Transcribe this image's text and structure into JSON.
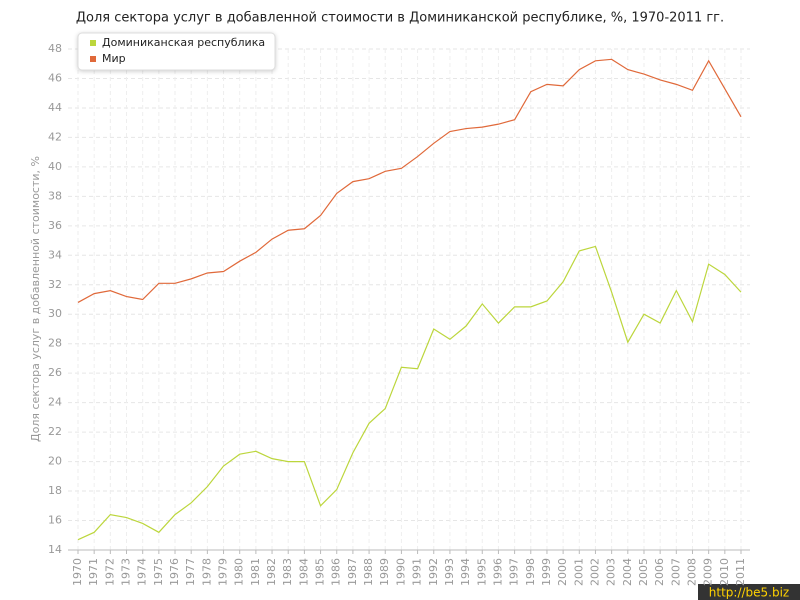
{
  "chart_data": {
    "type": "line",
    "title": "Доля сектора услуг в добавленной стоимости в Доминиканской республике, %, 1970-2011 гг.",
    "y_label": "Доля сектора услуг в добавленной стоимости, %",
    "categories": [
      "1970",
      "1971",
      "1972",
      "1973",
      "1974",
      "1975",
      "1976",
      "1977",
      "1978",
      "1979",
      "1980",
      "1981",
      "1982",
      "1983",
      "1984",
      "1985",
      "1986",
      "1987",
      "1988",
      "1989",
      "1990",
      "1991",
      "1992",
      "1993",
      "1994",
      "1995",
      "1996",
      "1997",
      "1998",
      "1999",
      "2000",
      "2001",
      "2002",
      "2003",
      "2004",
      "2005",
      "2006",
      "2007",
      "2008",
      "2009",
      "2010",
      "2011"
    ],
    "series": [
      {
        "name": "Доминиканская республика",
        "color": "#bcd63c",
        "values": [
          14.7,
          15.2,
          16.4,
          16.2,
          15.8,
          15.2,
          16.4,
          17.2,
          18.3,
          19.7,
          20.5,
          20.7,
          20.2,
          20.0,
          20.0,
          17.0,
          18.1,
          20.6,
          22.6,
          23.6,
          26.4,
          26.3,
          29.0,
          28.3,
          29.2,
          30.7,
          29.4,
          30.5,
          30.5,
          30.9,
          32.2,
          34.3,
          34.6,
          31.5,
          28.1,
          30.0,
          29.4,
          31.6,
          29.5,
          33.4,
          32.7,
          31.5
        ]
      },
      {
        "name": "Мир",
        "color": "#e0693a",
        "values": [
          30.8,
          31.4,
          31.6,
          31.2,
          31.0,
          32.1,
          32.1,
          32.4,
          32.8,
          32.9,
          33.6,
          34.2,
          35.1,
          35.7,
          35.8,
          36.7,
          38.2,
          39.0,
          39.2,
          39.7,
          39.9,
          40.7,
          41.6,
          42.4,
          42.6,
          42.7,
          42.9,
          43.2,
          45.1,
          45.6,
          45.5,
          46.6,
          47.2,
          47.3,
          46.6,
          46.3,
          45.9,
          45.6,
          45.2,
          47.2,
          45.3,
          43.4
        ]
      }
    ],
    "ylim": [
      14,
      48
    ],
    "yticks": [
      14,
      16,
      18,
      20,
      22,
      24,
      26,
      28,
      30,
      32,
      34,
      36,
      38,
      40,
      42,
      44,
      46,
      48
    ],
    "grid": true,
    "legend": "top-left",
    "watermark": "http://be5.biz"
  }
}
